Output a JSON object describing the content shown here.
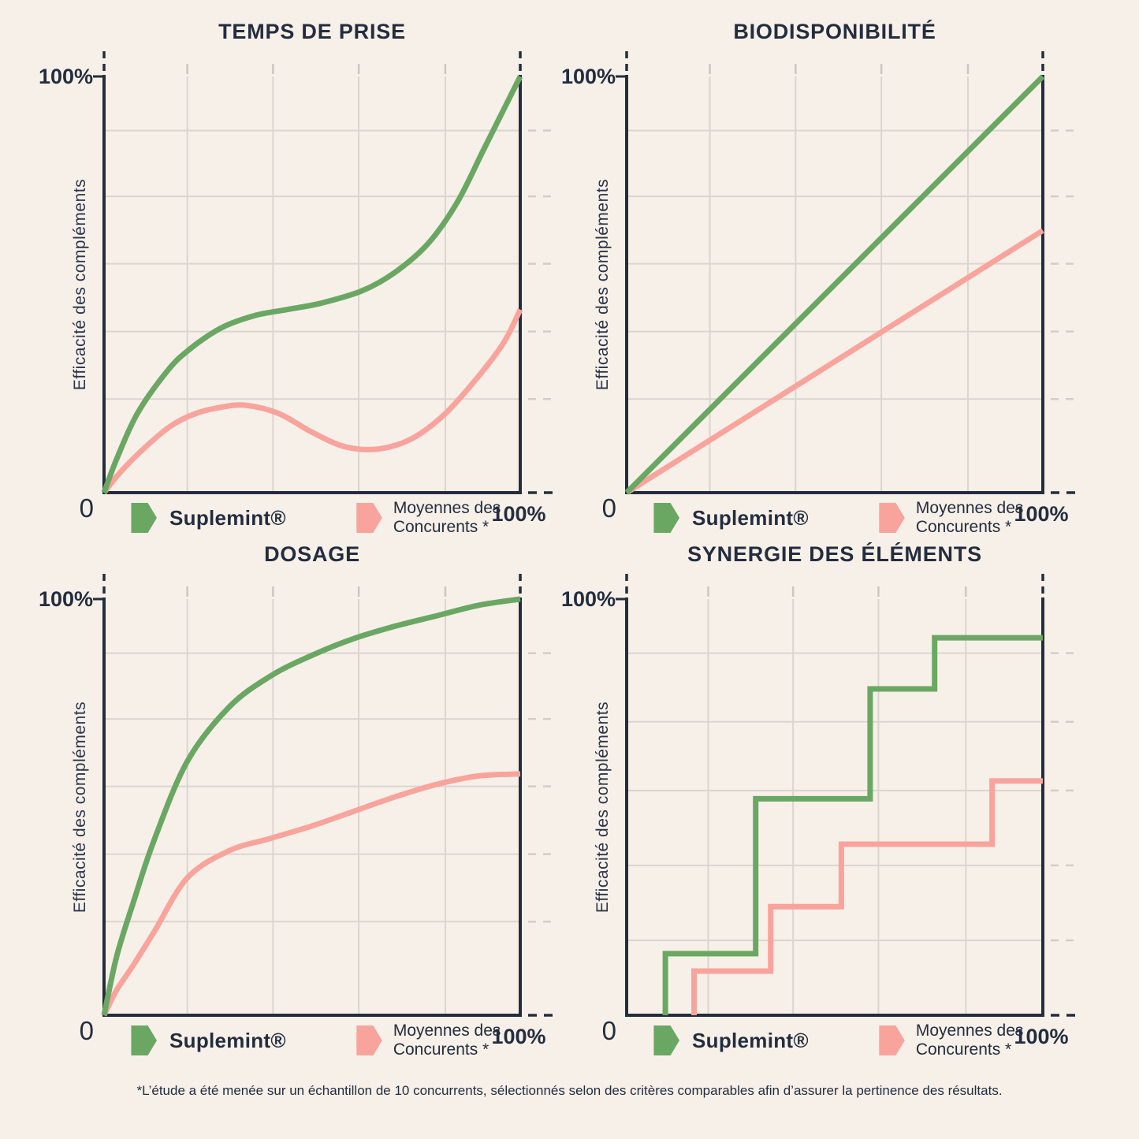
{
  "page": {
    "footnote": "*L’étude a été menée sur un échantillon de 10 concurrents, sélectionnés selon des critères comparables afin d’assurer la pertinence des résultats.",
    "colors": {
      "background": "#f7f0e9",
      "axis_dark_navy": "#232d3e",
      "grid_gray": "#dbd5d0",
      "suplemint_green": "#6aa763",
      "competitors_pink": "#f8a49d"
    }
  },
  "legend": {
    "suplemint_label": "Suplemint®",
    "competitors_label_line1": "Moyennes des",
    "competitors_label_line2": "Concurents *"
  },
  "chart_data": [
    {
      "type": "line",
      "title": "TEMPS DE PRISE",
      "xlabel": "",
      "ylabel": "Efficacité des compléments",
      "xlim": [
        0,
        100
      ],
      "ylim": [
        0,
        100
      ],
      "grid": true,
      "smooth": true,
      "legend_position": "bottom",
      "labels": {
        "y_max": "100%",
        "origin": "0",
        "x_max": "100%",
        "y_axis": "Efficacité des compléments"
      },
      "grid_x_percents": [
        20,
        40.6,
        61.2,
        82
      ],
      "grid_y_percents": [
        22.5,
        38.7,
        55,
        71.2,
        87
      ],
      "series": [
        {
          "name": "Suplemint®",
          "color": "#6aa763",
          "x": [
            0,
            3,
            8,
            15,
            20,
            28,
            36,
            44,
            52,
            62,
            70,
            78,
            85,
            91,
            96,
            100
          ],
          "y": [
            0,
            8,
            19,
            29,
            34,
            39.5,
            42.5,
            44,
            45.5,
            48.5,
            53,
            60,
            70,
            82,
            92,
            100
          ]
        },
        {
          "name": "Moyennes des Concurents *",
          "color": "#f8a49d",
          "x": [
            0,
            4,
            10,
            16,
            22,
            28,
            34,
            42,
            50,
            58,
            66,
            74,
            82,
            90,
            96,
            100
          ],
          "y": [
            0,
            5,
            11,
            16,
            19,
            20.5,
            21,
            19,
            14.5,
            11,
            10.5,
            13,
            19,
            28,
            36,
            44
          ]
        }
      ]
    },
    {
      "type": "line",
      "title": "BIODISPONIBILITÉ",
      "xlabel": "",
      "ylabel": "Efficacité des compléments",
      "xlim": [
        0,
        100
      ],
      "ylim": [
        0,
        100
      ],
      "grid": true,
      "smooth": false,
      "legend_position": "bottom",
      "labels": {
        "y_max": "100%",
        "origin": "0",
        "x_max": "100%",
        "y_axis": "Efficacité des compléments"
      },
      "grid_x_percents": [
        20,
        40.6,
        61.2,
        82
      ],
      "grid_y_percents": [
        22.5,
        38.7,
        55,
        71.2,
        87
      ],
      "series": [
        {
          "name": "Suplemint®",
          "color": "#6aa763",
          "x": [
            0,
            100
          ],
          "y": [
            0,
            100
          ]
        },
        {
          "name": "Moyennes des Concurents *",
          "color": "#f8a49d",
          "x": [
            0,
            100
          ],
          "y": [
            0,
            63
          ]
        }
      ]
    },
    {
      "type": "line",
      "title": "DOSAGE",
      "xlabel": "",
      "ylabel": "Efficacité des compléments",
      "xlim": [
        0,
        100
      ],
      "ylim": [
        0,
        100
      ],
      "grid": true,
      "smooth": true,
      "legend_position": "bottom",
      "labels": {
        "y_max": "100%",
        "origin": "0",
        "x_max": "100%",
        "y_axis": "Efficacité des compléments"
      },
      "grid_x_percents": [
        20,
        40.6,
        61.2,
        82
      ],
      "grid_y_percents": [
        22.5,
        38.7,
        55,
        71.2,
        87
      ],
      "series": [
        {
          "name": "Suplemint®",
          "color": "#6aa763",
          "x": [
            0,
            3,
            7,
            12,
            20,
            30,
            40,
            50,
            60,
            70,
            80,
            90,
            100
          ],
          "y": [
            0,
            14,
            27,
            42,
            61,
            74,
            81.5,
            86.5,
            90.5,
            93.5,
            96,
            98.5,
            100
          ]
        },
        {
          "name": "Moyennes des Concurents *",
          "color": "#f8a49d",
          "x": [
            0,
            3,
            7,
            12,
            20,
            30,
            40,
            50,
            60,
            70,
            80,
            90,
            100
          ],
          "y": [
            0,
            6,
            12,
            20,
            33,
            39.5,
            42.5,
            45.5,
            49,
            52.5,
            55.5,
            57.5,
            58
          ]
        }
      ]
    },
    {
      "type": "line",
      "title": "SYNERGIE DES ÉLÉMENTS",
      "xlabel": "",
      "ylabel": "Efficacité des compléments",
      "xlim": [
        0,
        100
      ],
      "ylim": [
        0,
        100
      ],
      "grid": true,
      "smooth": false,
      "legend_position": "bottom",
      "labels": {
        "y_max": "100%",
        "origin": "0",
        "x_max": "100%",
        "y_axis": "Efficacité des compléments"
      },
      "grid_x_percents": [
        19.6,
        40,
        60.5,
        81.5
      ],
      "grid_y_percents": [
        18,
        36,
        54,
        70.5,
        87
      ],
      "series": [
        {
          "name": "Suplemint®",
          "color": "#6aa763",
          "x": [
            9.3,
            9.3,
            31,
            31,
            58.5,
            58.5,
            74,
            74,
            100
          ],
          "y": [
            0,
            14.8,
            14.8,
            52,
            52,
            78.4,
            78.4,
            90.7,
            90.7
          ]
        },
        {
          "name": "Moyennes des Concurents *",
          "color": "#f8a49d",
          "x": [
            16.2,
            16.2,
            34.6,
            34.6,
            51.6,
            51.6,
            87.8,
            87.8,
            100
          ],
          "y": [
            0,
            10.6,
            10.6,
            26.1,
            26.1,
            41.1,
            41.1,
            56.3,
            56.3
          ]
        }
      ]
    }
  ]
}
